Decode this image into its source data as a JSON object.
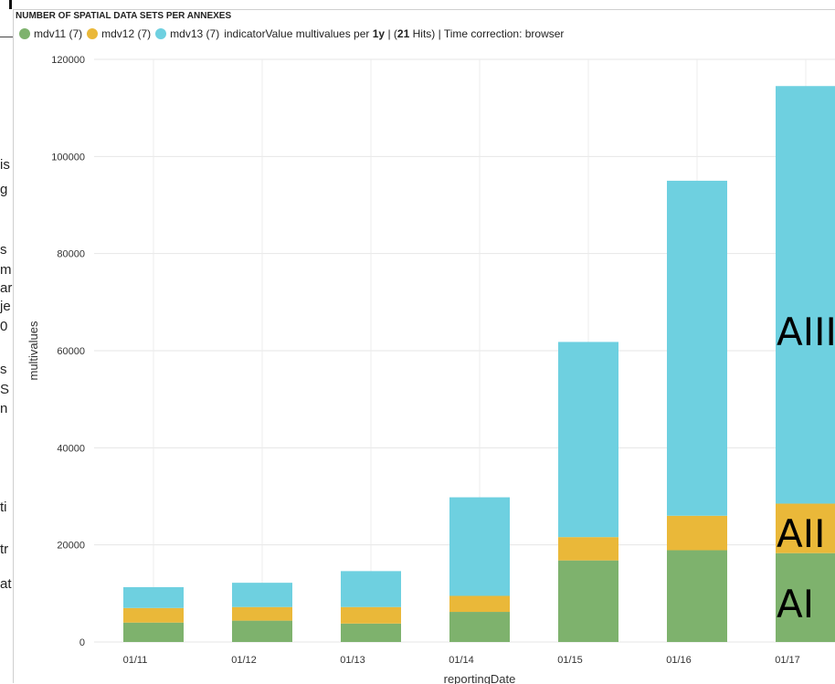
{
  "panel": {
    "title": "NUMBER OF SPATIAL DATA SETS PER ANNEXES",
    "legend_items": [
      {
        "label": "mdv11 (7)",
        "color": "#7eb26d"
      },
      {
        "label": "mdv12 (7)",
        "color": "#eab839"
      },
      {
        "label": "mdv13 (7)",
        "color": "#6ed0e0"
      }
    ],
    "legend_info": {
      "prefix": "indicatorValue multivalues per",
      "interval": "1y",
      "sep": "| (",
      "hits_count": "21",
      "hits_suffix": "Hits) | Time correction: browser"
    }
  },
  "background_fragments": [
    "is",
    "g",
    "s",
    "m",
    "ar",
    "je",
    "0",
    "s",
    "S",
    "n",
    "ti",
    "tr",
    "at"
  ],
  "chart_data": {
    "type": "bar",
    "stacked": true,
    "categories": [
      "01/11",
      "01/12",
      "01/13",
      "01/14",
      "01/15",
      "01/16",
      "01/17"
    ],
    "series": [
      {
        "name": "mdv11 (7)",
        "color": "#7eb26d",
        "values": [
          4000,
          4400,
          3800,
          6200,
          16800,
          18900,
          18300
        ]
      },
      {
        "name": "mdv12 (7)",
        "color": "#eab839",
        "values": [
          3000,
          2800,
          3400,
          3300,
          4800,
          7100,
          10200
        ]
      },
      {
        "name": "mdv13 (7)",
        "color": "#6ed0e0",
        "values": [
          4300,
          5000,
          7400,
          20300,
          40200,
          69000,
          86000
        ]
      }
    ],
    "xlabel": "reportingDate",
    "ylabel": "multivalues",
    "ylim": [
      0,
      120000
    ],
    "yticks": [
      0,
      20000,
      40000,
      60000,
      80000,
      100000,
      120000
    ],
    "grid": true,
    "annotations": [
      "AI",
      "AII",
      "AIII"
    ]
  }
}
